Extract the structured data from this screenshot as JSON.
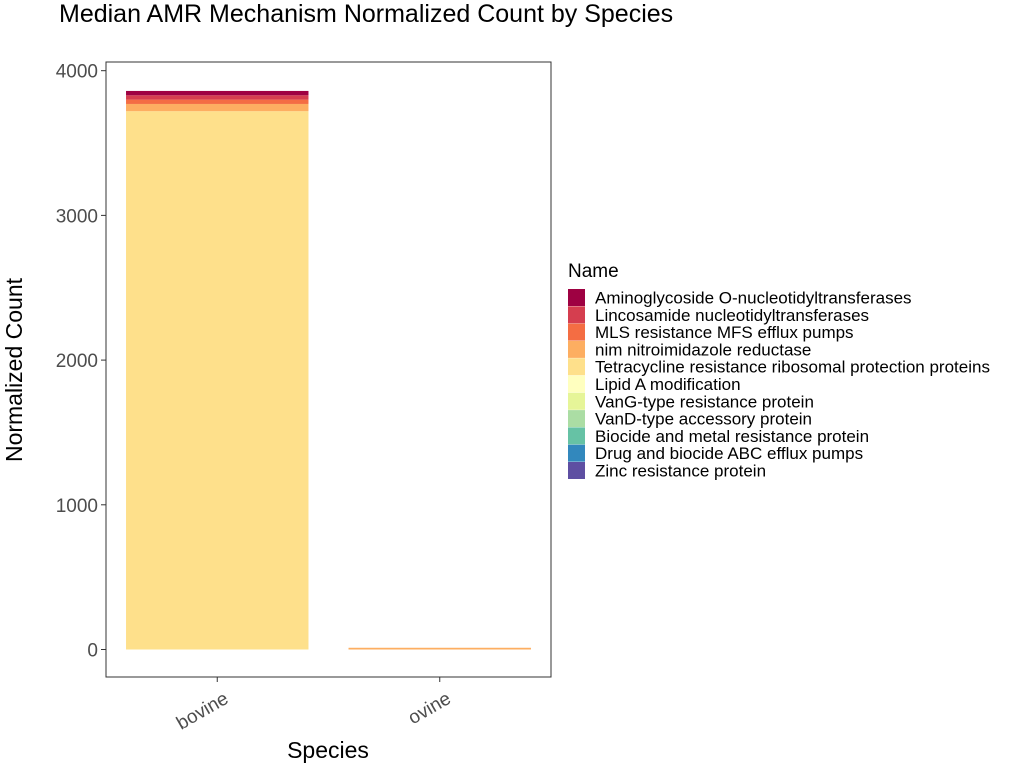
{
  "chart_data": {
    "type": "bar",
    "stacked": true,
    "title": "Median AMR Mechanism Normalized Count by Species",
    "xlabel": "Species",
    "ylabel": "Normalized Count",
    "categories": [
      "bovine",
      "ovine"
    ],
    "yticks": [
      "0",
      "1000",
      "2000",
      "3000",
      "4000"
    ],
    "ylim": [
      -190,
      4060
    ],
    "grid": false,
    "legend_title": "Name",
    "legend_position": "right",
    "series": [
      {
        "name": "Aminoglycoside O-nucleotidyltransferases",
        "color": "#9E0142",
        "values": [
          30,
          0
        ]
      },
      {
        "name": "Lincosamide nucleotidyltransferases",
        "color": "#D53E4F",
        "values": [
          30,
          0
        ]
      },
      {
        "name": "MLS resistance MFS efflux pumps",
        "color": "#F46D43",
        "values": [
          30,
          0
        ]
      },
      {
        "name": "nim nitroimidazole reductase",
        "color": "#FDAE61",
        "values": [
          50,
          12
        ]
      },
      {
        "name": "Tetracycline resistance ribosomal protection proteins",
        "color": "#FEE08B",
        "values": [
          3720,
          0
        ]
      },
      {
        "name": "Lipid A modification",
        "color": "#FFFFBF",
        "values": [
          0,
          0
        ]
      },
      {
        "name": "VanG-type resistance protein",
        "color": "#E6F598",
        "values": [
          0,
          0
        ]
      },
      {
        "name": "VanD-type accessory protein",
        "color": "#ABDDA4",
        "values": [
          0,
          0
        ]
      },
      {
        "name": "Biocide and metal resistance protein",
        "color": "#66C2A5",
        "values": [
          0,
          0
        ]
      },
      {
        "name": "Drug and biocide ABC efflux pumps",
        "color": "#3288BD",
        "values": [
          0,
          0
        ]
      },
      {
        "name": "Zinc resistance protein",
        "color": "#5E4FA2",
        "values": [
          0,
          0
        ]
      }
    ]
  }
}
